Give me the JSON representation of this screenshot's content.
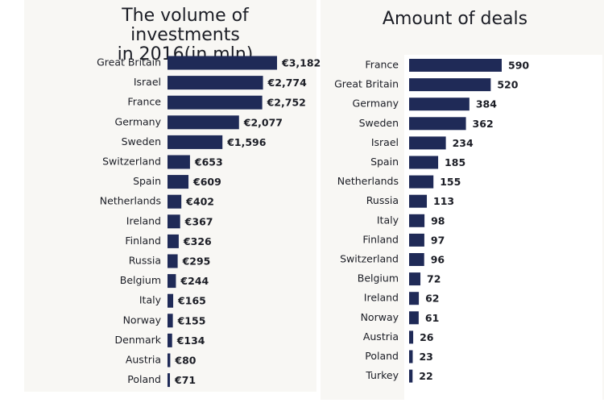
{
  "chart_data": [
    {
      "type": "bar",
      "orientation": "horizontal",
      "title": "The volume of investments\nin 2016(in mln)",
      "title_lines": [
        "The volume of investments",
        "in 2016(in mln)"
      ],
      "value_prefix": "€",
      "categories": [
        "Great Britain",
        "Israel",
        "France",
        "Germany",
        "Sweden",
        "Switzerland",
        "Spain",
        "Netherlands",
        "Ireland",
        "Finland",
        "Russia",
        "Belgium",
        "Italy",
        "Norway",
        "Denmark",
        "Austria",
        "Poland"
      ],
      "values": [
        3182,
        2774,
        2752,
        2077,
        1596,
        653,
        609,
        402,
        367,
        326,
        295,
        244,
        165,
        155,
        134,
        80,
        71
      ],
      "value_labels": [
        "€3,182",
        "€2,774",
        "€2,752",
        "€2,077",
        "€1,596",
        "€653",
        "€609",
        "€402",
        "€367",
        "€326",
        "€295",
        "€244",
        "€165",
        "€155",
        "€134",
        "€80",
        "€71"
      ],
      "xlabel": "",
      "ylabel": "",
      "xlim": [
        0,
        3182
      ],
      "grid": false,
      "legend": "none",
      "bar_color": "#1f2a57"
    },
    {
      "type": "bar",
      "orientation": "horizontal",
      "title": "Amount of deals",
      "title_lines": [
        "Amount of deals"
      ],
      "categories": [
        "France",
        "Great Britain",
        "Germany",
        "Sweden",
        "Israel",
        "Spain",
        "Netherlands",
        "Russia",
        "Italy",
        "Finland",
        "Switzerland",
        "Belgium",
        "Ireland",
        "Norway",
        "Austria",
        "Poland",
        "Turkey"
      ],
      "values": [
        590,
        520,
        384,
        362,
        234,
        185,
        155,
        113,
        98,
        97,
        96,
        72,
        62,
        61,
        26,
        23,
        22
      ],
      "value_labels": [
        "590",
        "520",
        "384",
        "362",
        "234",
        "185",
        "155",
        "113",
        "98",
        "97",
        "96",
        "72",
        "62",
        "61",
        "26",
        "23",
        "22"
      ],
      "xlabel": "",
      "ylabel": "",
      "xlim": [
        0,
        590
      ],
      "grid": false,
      "legend": "none",
      "bar_color": "#1f2a57"
    }
  ]
}
